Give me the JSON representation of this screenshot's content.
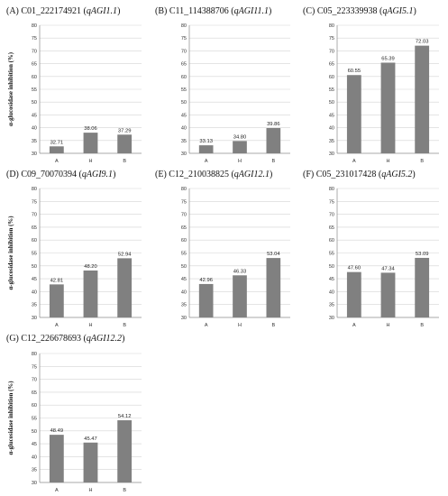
{
  "colors": {
    "bar": "#808080",
    "grid": "#d3d3d3",
    "axis": "#8c8c8c"
  },
  "chart_data": [
    {
      "type": "bar",
      "panel": "(A)",
      "title_main": "C01_222174921 (",
      "title_qtl": "qAGI1.1",
      "title_close": ")",
      "ylabel": "α-glucosidase inhibition (%)",
      "categories": [
        "A",
        "H",
        "B"
      ],
      "values": [
        32.71,
        38.06,
        37.29
      ],
      "value_labels": [
        "32.71",
        "38.06",
        "37.29"
      ],
      "ylim": [
        30,
        80
      ],
      "yticks": [
        "30",
        "35",
        "40",
        "45",
        "50",
        "55",
        "60",
        "65",
        "70",
        "75",
        "80"
      ],
      "grid": true
    },
    {
      "type": "bar",
      "panel": "(B)",
      "title_main": "C11_114388706 (",
      "title_qtl": "qAGI11.1",
      "title_close": ")",
      "ylabel": "",
      "categories": [
        "A",
        "H",
        "B"
      ],
      "values": [
        33.13,
        34.8,
        39.86
      ],
      "value_labels": [
        "33.13",
        "34.80",
        "39.86"
      ],
      "ylim": [
        30,
        80
      ],
      "yticks": [
        "30",
        "35",
        "40",
        "45",
        "50",
        "55",
        "60",
        "65",
        "70",
        "75",
        "80"
      ],
      "grid": true
    },
    {
      "type": "bar",
      "panel": "(C)",
      "title_main": "C05_223339938 (",
      "title_qtl": "qAGI5.1",
      "title_close": ")",
      "ylabel": "",
      "categories": [
        "A",
        "H",
        "B"
      ],
      "values": [
        60.55,
        65.39,
        72.03
      ],
      "value_labels": [
        "60.55",
        "65.39",
        "72.03"
      ],
      "ylim": [
        30,
        80
      ],
      "yticks": [
        "30",
        "35",
        "40",
        "45",
        "50",
        "55",
        "60",
        "65",
        "70",
        "75",
        "80"
      ],
      "grid": true
    },
    {
      "type": "bar",
      "panel": "(D)",
      "title_main": "C09_70070394 (",
      "title_qtl": "qAGI9.1",
      "title_close": ")",
      "ylabel": "α-glucosidase inhibition (%)",
      "categories": [
        "A",
        "H",
        "B"
      ],
      "values": [
        42.81,
        48.2,
        52.94
      ],
      "value_labels": [
        "42.81",
        "48.20",
        "52.94"
      ],
      "ylim": [
        30,
        80
      ],
      "yticks": [
        "30",
        "35",
        "40",
        "45",
        "50",
        "55",
        "60",
        "65",
        "70",
        "75",
        "80"
      ],
      "grid": true
    },
    {
      "type": "bar",
      "panel": "(E)",
      "title_main": "C12_210038825 (",
      "title_qtl": "qAGI12.1",
      "title_close": ")",
      "ylabel": "",
      "categories": [
        "A",
        "H",
        "B"
      ],
      "values": [
        42.96,
        46.33,
        53.04
      ],
      "value_labels": [
        "42.96",
        "46.33",
        "53.04"
      ],
      "ylim": [
        30,
        80
      ],
      "yticks": [
        "30",
        "35",
        "40",
        "45",
        "50",
        "55",
        "60",
        "65",
        "70",
        "75",
        "80"
      ],
      "grid": true
    },
    {
      "type": "bar",
      "panel": "(F)",
      "title_main": "C05_231017428 (",
      "title_qtl": "qAGI5.2",
      "title_close": ")",
      "ylabel": "",
      "categories": [
        "A",
        "H",
        "B"
      ],
      "values": [
        47.6,
        47.34,
        53.09
      ],
      "value_labels": [
        "47.60",
        "47.34",
        "53.09"
      ],
      "ylim": [
        30,
        80
      ],
      "yticks": [
        "30",
        "35",
        "40",
        "45",
        "50",
        "55",
        "60",
        "65",
        "70",
        "75",
        "80"
      ],
      "grid": true
    },
    {
      "type": "bar",
      "panel": "(G)",
      "title_main": "C12_226678693 (",
      "title_qtl": "qAGI12.2",
      "title_close": ")",
      "ylabel": "α-glucosidase inhibition (%)",
      "categories": [
        "A",
        "H",
        "B"
      ],
      "values": [
        48.49,
        45.47,
        54.12
      ],
      "value_labels": [
        "48.49",
        "45.47",
        "54.12"
      ],
      "ylim": [
        30,
        80
      ],
      "yticks": [
        "30",
        "35",
        "40",
        "45",
        "50",
        "55",
        "60",
        "65",
        "70",
        "75",
        "80"
      ],
      "grid": true
    }
  ]
}
